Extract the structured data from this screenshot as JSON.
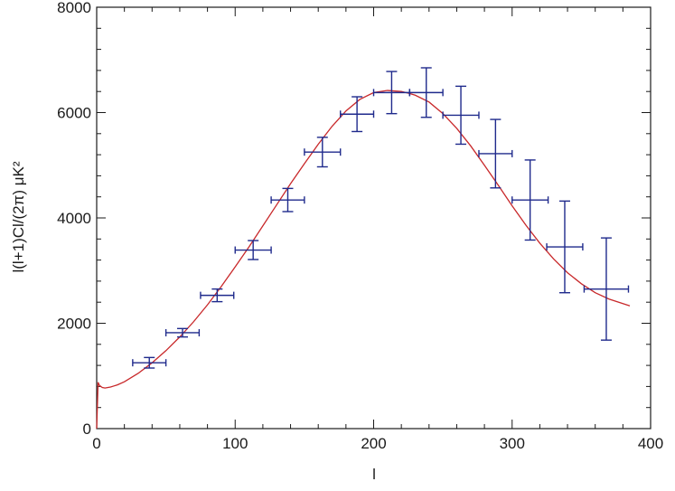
{
  "chart_data": {
    "type": "scatter",
    "title": "",
    "xlabel": "l",
    "ylabel": "l(l+1)Cl/(2π)  μK²",
    "xlim": [
      0,
      400
    ],
    "ylim": [
      0,
      8000
    ],
    "x_ticks": [
      0,
      100,
      200,
      300,
      400
    ],
    "y_ticks": [
      0,
      2000,
      4000,
      6000,
      8000
    ],
    "x_tick_labels": [
      "0",
      "100",
      "200",
      "300",
      "400"
    ],
    "y_tick_labels": [
      "0",
      "2000",
      "4000",
      "6000",
      "8000"
    ],
    "grid": false,
    "series": [
      {
        "kind": "errorbar",
        "color": "#1f2a8c",
        "points": [
          {
            "x": 38,
            "y": 1250,
            "xerr": 12,
            "yerr": 100
          },
          {
            "x": 62,
            "y": 1820,
            "xerr": 12,
            "yerr": 80
          },
          {
            "x": 87,
            "y": 2530,
            "xerr": 12,
            "yerr": 120
          },
          {
            "x": 113,
            "y": 3390,
            "xerr": 13,
            "yerr": 180
          },
          {
            "x": 138,
            "y": 4340,
            "xerr": 12,
            "yerr": 220
          },
          {
            "x": 163,
            "y": 5250,
            "xerr": 13,
            "yerr": 280
          },
          {
            "x": 188,
            "y": 5970,
            "xerr": 12,
            "yerr": 330
          },
          {
            "x": 213,
            "y": 6380,
            "xerr": 13,
            "yerr": 400
          },
          {
            "x": 238,
            "y": 6380,
            "xerr": 12,
            "yerr": 470
          },
          {
            "x": 263,
            "y": 5950,
            "xerr": 13,
            "yerr": 550
          },
          {
            "x": 288,
            "y": 5220,
            "xerr": 12,
            "yerr": 650
          },
          {
            "x": 313,
            "y": 4340,
            "xerr": 13,
            "yerr": 760
          },
          {
            "x": 338,
            "y": 3450,
            "xerr": 13,
            "yerr": 870
          },
          {
            "x": 368,
            "y": 2650,
            "xerr": 16,
            "yerr": 970
          }
        ]
      },
      {
        "kind": "line",
        "color": "#c8282a",
        "x": [
          1,
          2,
          4,
          6,
          10,
          15,
          20,
          30,
          40,
          50,
          60,
          70,
          80,
          90,
          100,
          110,
          120,
          130,
          140,
          150,
          160,
          170,
          180,
          190,
          200,
          210,
          220,
          225,
          230,
          240,
          250,
          260,
          270,
          280,
          290,
          300,
          310,
          320,
          330,
          340,
          350,
          360,
          370,
          385
        ],
        "y": [
          880,
          820,
          780,
          770,
          790,
          830,
          890,
          1050,
          1250,
          1480,
          1740,
          2030,
          2350,
          2700,
          3070,
          3450,
          3850,
          4250,
          4650,
          5030,
          5400,
          5740,
          6030,
          6250,
          6380,
          6420,
          6400,
          6370,
          6330,
          6200,
          5980,
          5700,
          5370,
          5000,
          4620,
          4230,
          3860,
          3520,
          3220,
          2960,
          2750,
          2580,
          2460,
          2330
        ]
      }
    ]
  }
}
